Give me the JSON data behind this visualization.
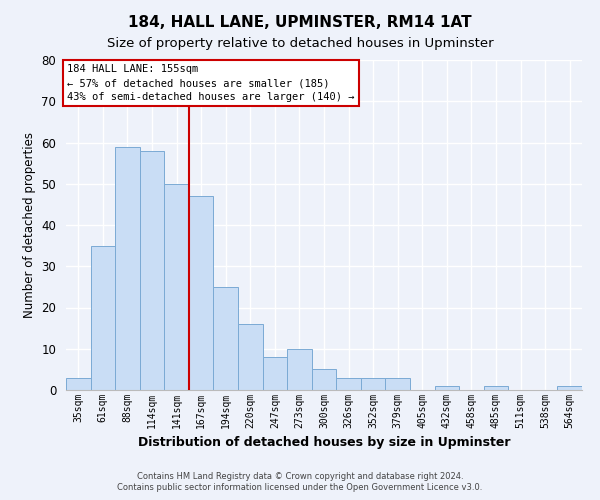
{
  "title": "184, HALL LANE, UPMINSTER, RM14 1AT",
  "subtitle": "Size of property relative to detached houses in Upminster",
  "xlabel": "Distribution of detached houses by size in Upminster",
  "ylabel": "Number of detached properties",
  "bar_labels": [
    "35sqm",
    "61sqm",
    "88sqm",
    "114sqm",
    "141sqm",
    "167sqm",
    "194sqm",
    "220sqm",
    "247sqm",
    "273sqm",
    "300sqm",
    "326sqm",
    "352sqm",
    "379sqm",
    "405sqm",
    "432sqm",
    "458sqm",
    "485sqm",
    "511sqm",
    "538sqm",
    "564sqm"
  ],
  "bar_values": [
    3,
    35,
    59,
    58,
    50,
    47,
    25,
    16,
    8,
    10,
    5,
    3,
    3,
    3,
    0,
    1,
    0,
    1,
    0,
    0,
    1
  ],
  "bar_color": "#c9ddf5",
  "bar_edge_color": "#7baad4",
  "vline_x": 4.5,
  "vline_color": "#cc0000",
  "ylim": [
    0,
    80
  ],
  "yticks": [
    0,
    10,
    20,
    30,
    40,
    50,
    60,
    70,
    80
  ],
  "annotation_title": "184 HALL LANE: 155sqm",
  "annotation_line1": "← 57% of detached houses are smaller (185)",
  "annotation_line2": "43% of semi-detached houses are larger (140) →",
  "annotation_box_facecolor": "#ffffff",
  "annotation_box_edgecolor": "#cc0000",
  "footer_line1": "Contains HM Land Registry data © Crown copyright and database right 2024.",
  "footer_line2": "Contains public sector information licensed under the Open Government Licence v3.0.",
  "background_color": "#eef2fa",
  "plot_bg_color": "#eef2fa",
  "grid_color": "#ffffff",
  "title_fontsize": 11,
  "subtitle_fontsize": 9.5
}
